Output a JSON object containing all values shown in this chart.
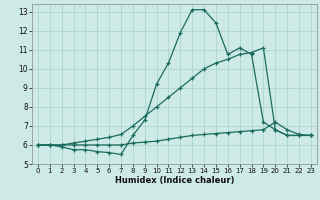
{
  "xlabel": "Humidex (Indice chaleur)",
  "background_color": "#ceeae6",
  "grid_color": "#aed4d0",
  "line_color": "#1a6b5e",
  "xlim": [
    -0.5,
    23.5
  ],
  "ylim": [
    5,
    13.4
  ],
  "xticks": [
    0,
    1,
    2,
    3,
    4,
    5,
    6,
    7,
    8,
    9,
    10,
    11,
    12,
    13,
    14,
    15,
    16,
    17,
    18,
    19,
    20,
    21,
    22,
    23
  ],
  "yticks": [
    5,
    6,
    7,
    8,
    9,
    10,
    11,
    12,
    13
  ],
  "series": [
    {
      "x": [
        0,
        1,
        2,
        3,
        4,
        5,
        6,
        7,
        8,
        9,
        10,
        11,
        12,
        13,
        14,
        15,
        16,
        17,
        18,
        19,
        20,
        21,
        22,
        23
      ],
      "y": [
        6.0,
        6.0,
        5.9,
        5.75,
        5.75,
        5.65,
        5.6,
        5.5,
        6.5,
        7.3,
        9.2,
        10.3,
        11.9,
        13.1,
        13.1,
        12.4,
        10.75,
        11.1,
        10.75,
        7.2,
        6.8,
        6.5,
        6.5,
        6.5
      ]
    },
    {
      "x": [
        0,
        1,
        2,
        3,
        4,
        5,
        6,
        7,
        8,
        9,
        10,
        11,
        12,
        13,
        14,
        15,
        16,
        17,
        18,
        19,
        20,
        21,
        22,
        23
      ],
      "y": [
        6.0,
        6.0,
        6.0,
        6.1,
        6.2,
        6.3,
        6.4,
        6.55,
        7.0,
        7.5,
        8.0,
        8.5,
        9.0,
        9.5,
        10.0,
        10.3,
        10.5,
        10.75,
        10.85,
        11.1,
        6.8,
        6.5,
        6.5,
        6.5
      ]
    },
    {
      "x": [
        0,
        1,
        2,
        3,
        4,
        5,
        6,
        7,
        8,
        9,
        10,
        11,
        12,
        13,
        14,
        15,
        16,
        17,
        18,
        19,
        20,
        21,
        22,
        23
      ],
      "y": [
        6.0,
        6.0,
        6.0,
        6.0,
        6.0,
        6.0,
        6.0,
        6.0,
        6.1,
        6.15,
        6.2,
        6.3,
        6.4,
        6.5,
        6.55,
        6.6,
        6.65,
        6.7,
        6.75,
        6.8,
        7.2,
        6.8,
        6.55,
        6.5
      ]
    }
  ]
}
